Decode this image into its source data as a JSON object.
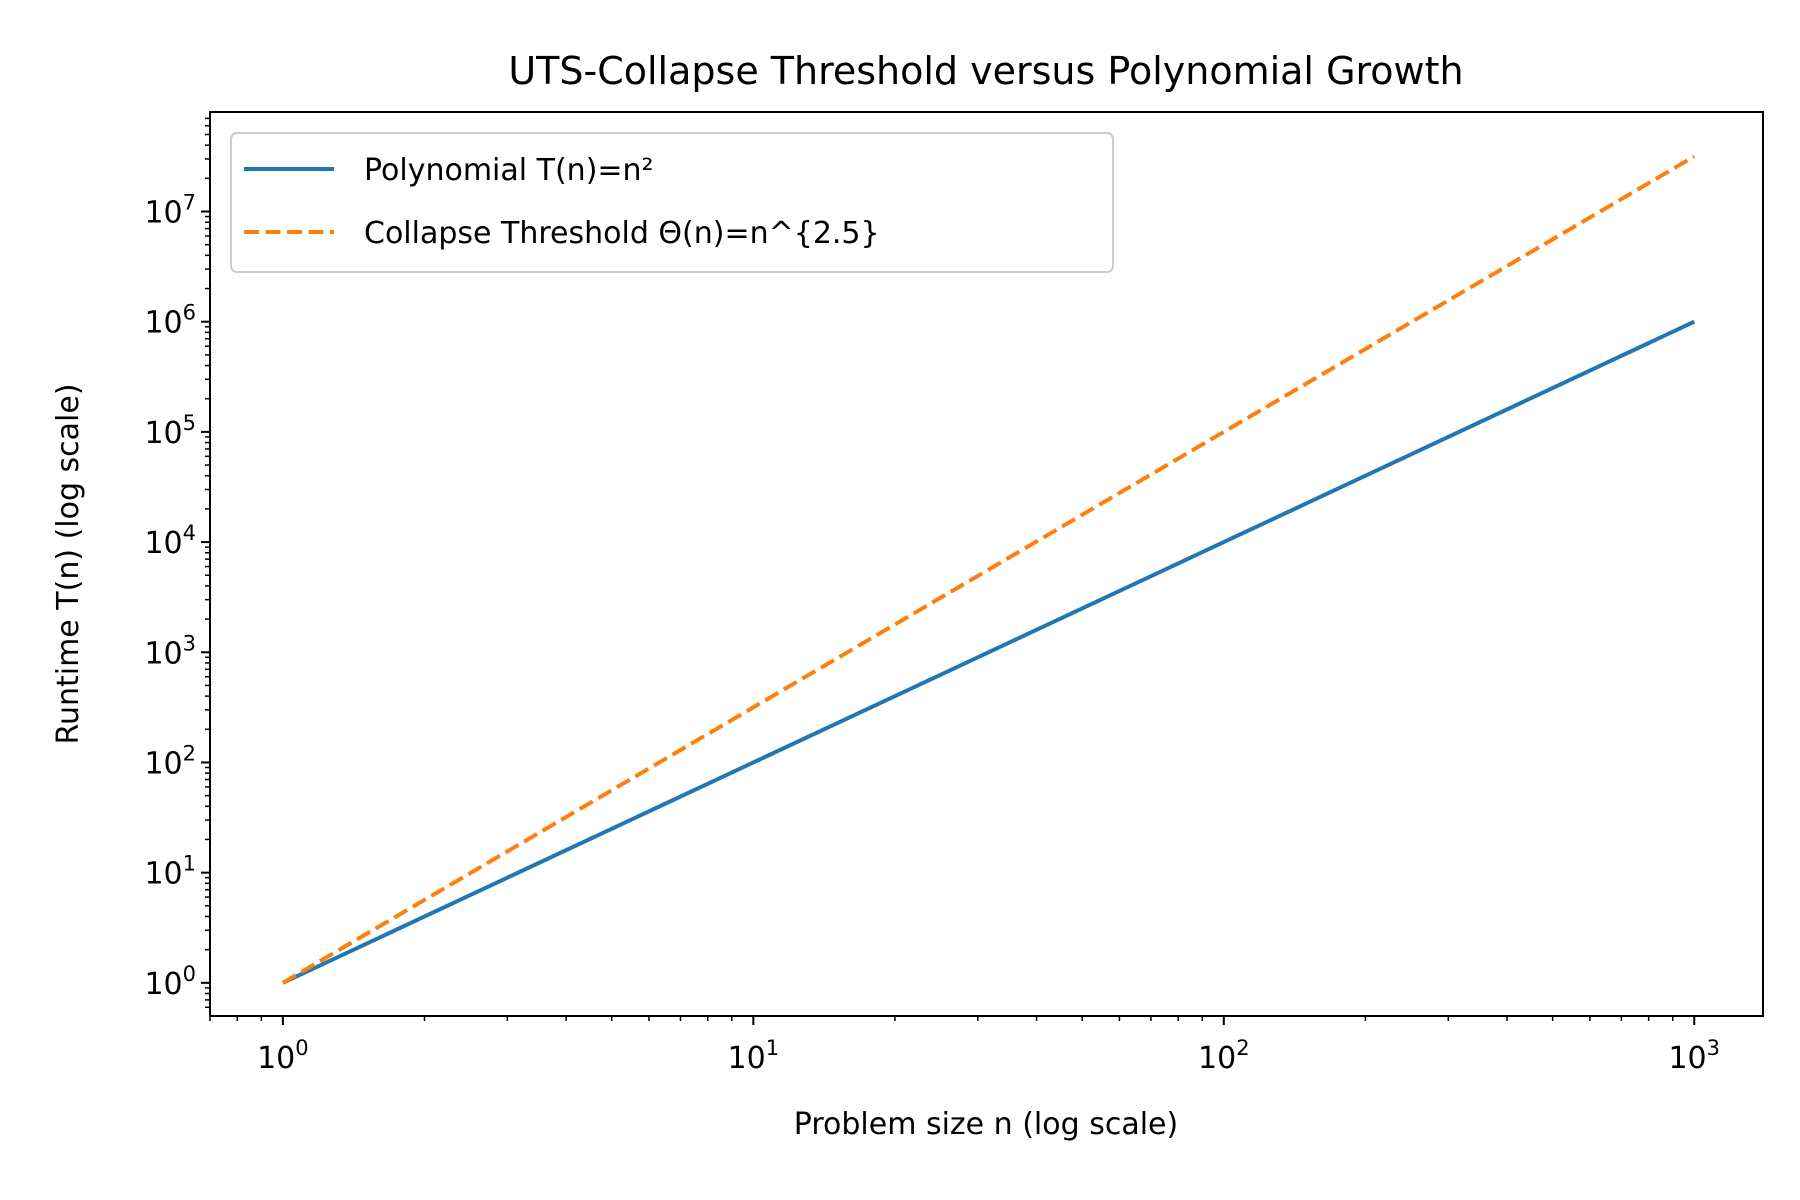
{
  "chart_data": {
    "type": "line",
    "title": "UTS-Collapse Threshold versus Polynomial Growth",
    "xlabel": "Problem size  n  (log scale)",
    "ylabel": "Runtime  T(n)  (log scale)",
    "x_scale": "log",
    "y_scale": "log",
    "xlim": [
      0.7,
      1400
    ],
    "ylim": [
      0.5,
      80000000
    ],
    "x_ticks": [
      {
        "value": 1,
        "base": "10",
        "exp": "0"
      },
      {
        "value": 10,
        "base": "10",
        "exp": "1"
      },
      {
        "value": 100,
        "base": "10",
        "exp": "2"
      },
      {
        "value": 1000,
        "base": "10",
        "exp": "3"
      }
    ],
    "y_ticks": [
      {
        "value": 1,
        "base": "10",
        "exp": "0"
      },
      {
        "value": 10,
        "base": "10",
        "exp": "1"
      },
      {
        "value": 100,
        "base": "10",
        "exp": "2"
      },
      {
        "value": 1000,
        "base": "10",
        "exp": "3"
      },
      {
        "value": 10000,
        "base": "10",
        "exp": "4"
      },
      {
        "value": 100000,
        "base": "10",
        "exp": "5"
      },
      {
        "value": 1000000,
        "base": "10",
        "exp": "6"
      },
      {
        "value": 10000000,
        "base": "10",
        "exp": "7"
      }
    ],
    "grid": false,
    "legend_position": "top-left",
    "series": [
      {
        "name": "Polynomial  T(n)=n²",
        "color": "#1f77b4",
        "style": "solid",
        "x": [
          1,
          10,
          100,
          1000
        ],
        "y": [
          1,
          100,
          10000,
          1000000
        ]
      },
      {
        "name": "Collapse Threshold  Θ(n)=n^{2.5}",
        "color": "#ff7f0e",
        "style": "dashed",
        "x": [
          1,
          10,
          100,
          1000
        ],
        "y": [
          1,
          316.2,
          100000,
          31622776
        ]
      }
    ]
  }
}
